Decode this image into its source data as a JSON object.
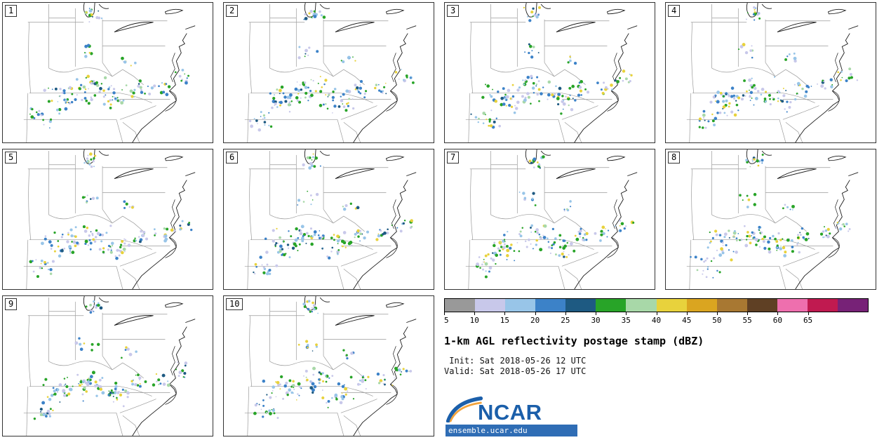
{
  "panels": [
    {
      "label": "1"
    },
    {
      "label": "2"
    },
    {
      "label": "3"
    },
    {
      "label": "4"
    },
    {
      "label": "5"
    },
    {
      "label": "6"
    },
    {
      "label": "7"
    },
    {
      "label": "8"
    },
    {
      "label": "9"
    },
    {
      "label": "10"
    }
  ],
  "legend": {
    "title": "1-km AGL reflectivity postage stamp (dBZ)",
    "init_line": " Init: Sat 2018-05-26 12 UTC",
    "valid_line": "Valid: Sat 2018-05-26 17 UTC",
    "colorbar": {
      "ticks": [
        "5",
        "10",
        "15",
        "20",
        "25",
        "30",
        "35",
        "40",
        "45",
        "50",
        "55",
        "60",
        "65"
      ],
      "colors": [
        "#999999",
        "#c8c8ea",
        "#98c5e8",
        "#3c82c8",
        "#1e5a82",
        "#28a428",
        "#a8d8a8",
        "#e8d23c",
        "#daa520",
        "#a87832",
        "#5f4024",
        "#ee6fae",
        "#c01a50",
        "#772277"
      ]
    },
    "logo": {
      "text": "NCAR",
      "site": "ensemble.ucar.edu",
      "brand_color": "#1b5faa"
    }
  }
}
